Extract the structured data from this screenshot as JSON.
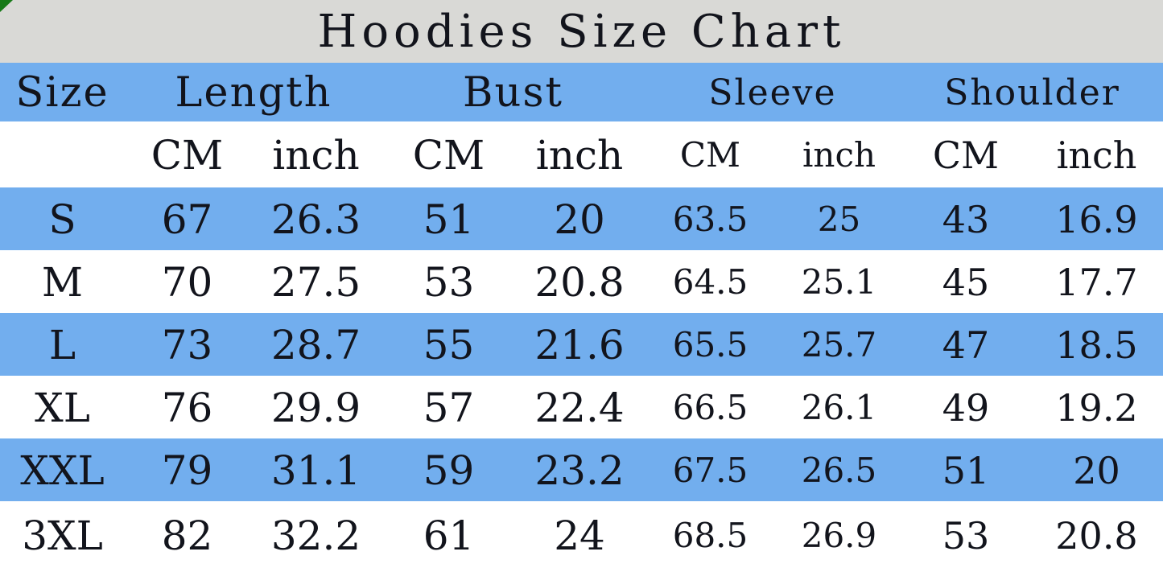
{
  "chart_data": {
    "type": "table",
    "title": "Hoodies Size Chart",
    "column_groups": [
      {
        "label": "Size",
        "colspan": 1
      },
      {
        "label": "Length",
        "colspan": 2
      },
      {
        "label": "Bust",
        "colspan": 2
      },
      {
        "label": "Sleeve",
        "colspan": 2
      },
      {
        "label": "Shoulder",
        "colspan": 2
      }
    ],
    "unit_headers": [
      "",
      "CM",
      "inch",
      "CM",
      "inch",
      "CM",
      "inch",
      "CM",
      "inch"
    ],
    "rows": [
      [
        "S",
        "67",
        "26.3",
        "51",
        "20",
        "63.5",
        "25",
        "43",
        "16.9"
      ],
      [
        "M",
        "70",
        "27.5",
        "53",
        "20.8",
        "64.5",
        "25.1",
        "45",
        "17.7"
      ],
      [
        "L",
        "73",
        "28.7",
        "55",
        "21.6",
        "65.5",
        "25.7",
        "47",
        "18.5"
      ],
      [
        "XL",
        "76",
        "29.9",
        "57",
        "22.4",
        "66.5",
        "26.1",
        "49",
        "19.2"
      ],
      [
        "XXL",
        "79",
        "31.1",
        "59",
        "23.2",
        "67.5",
        "26.5",
        "51",
        "20"
      ],
      [
        "3XL",
        "82",
        "32.2",
        "61",
        "24",
        "68.5",
        "26.9",
        "53",
        "20.8"
      ]
    ],
    "layout": {
      "zebra_striping": true,
      "first_data_row_color": "blue",
      "legend_position": "none",
      "grid": false
    }
  },
  "colors": {
    "row_blue": "#72aeee",
    "title_bar_gray": "#d9d9d6",
    "row_white": "#ffffff",
    "text": "#12141c",
    "corner_green": "#177a17"
  },
  "icons": {
    "corner_triangle": "green-corner-triangle"
  }
}
